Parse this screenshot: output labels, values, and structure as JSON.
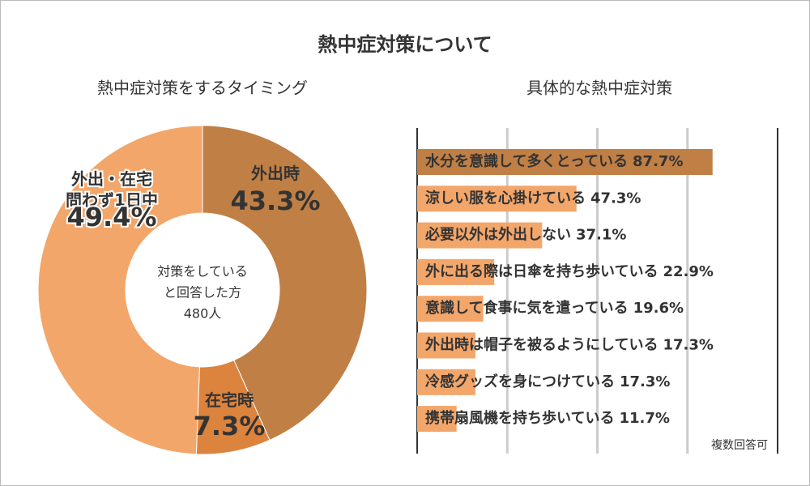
{
  "title": "熱中症対策について",
  "chart_data": [
    {
      "type": "pie",
      "subtitle": "熱中症対策をするタイミング",
      "categories": [
        "外出時",
        "在宅時",
        "外出・在宅問わず1日中"
      ],
      "values": [
        43.3,
        7.3,
        49.4
      ],
      "value_labels": [
        "43.3%",
        "7.3%",
        "49.4%"
      ],
      "colors": [
        "#c07f45",
        "#dc833e",
        "#f3a66a"
      ],
      "center_text": [
        "対策をしている",
        "と回答した方",
        "480人"
      ]
    },
    {
      "type": "bar",
      "subtitle": "具体的な熱中症対策",
      "categories": [
        "水分を意識して多くとっている",
        "涼しい服を心掛けている",
        "必要以外は外出しない",
        "外に出る際は日傘を持ち歩いている",
        "意識して食事に気を遣っている",
        "外出時は帽子を被るようにしている",
        "冷感グッズを身につけている",
        "携帯扇風機を持ち歩いている"
      ],
      "values": [
        87.7,
        47.3,
        37.1,
        22.9,
        19.6,
        17.3,
        17.3,
        11.7
      ],
      "value_labels": [
        "87.7%",
        "47.3%",
        "37.1%",
        "22.9%",
        "19.6%",
        "17.3%",
        "17.3%",
        "11.7%"
      ],
      "colors": [
        "#c07f45",
        "#f3a66a",
        "#f3a66a",
        "#f3a66a",
        "#f3a66a",
        "#f3a66a",
        "#f3a66a",
        "#f3a66a"
      ],
      "xlim": [
        0,
        107
      ],
      "xticks": [
        0,
        26.75,
        53.5,
        80.25,
        107
      ],
      "grid": true,
      "note": "複数回答可"
    }
  ]
}
